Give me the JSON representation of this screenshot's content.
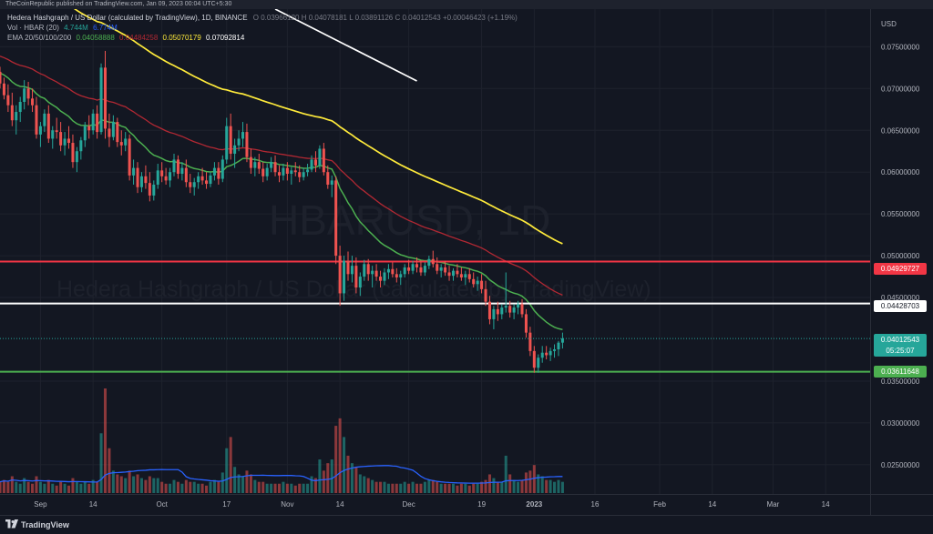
{
  "header": {
    "published_text": "TheCoinRepublic published on TradingView.com, Jan 09, 2023 00:04 UTC+5:30"
  },
  "legend": {
    "title": "Hedera Hashgraph / US Dollar (calculated by TradingView), 1D, BINANCE",
    "ohlc": "O 0.03966120 H 0.04078181 L 0.03891126 C 0.04012543 +0.00046423 (+1.19%)",
    "vol_label": "Vol · HBAR (20)",
    "vol_value": "4.744M",
    "vol_ma": "6.774M",
    "ema_label": "EMA 20/50/100/200",
    "ema20": "0.04058888",
    "ema50": "0.04484258",
    "ema100": "0.05070179",
    "ema200": "0.07092814"
  },
  "watermark": {
    "symbol": "HBARUSD, 1D",
    "description": "Hedera Hashgraph / US Dollar (calculated by TradingView)"
  },
  "price_labels": {
    "resistance_red": "0.04929727",
    "resistance_white": "0.04428703",
    "current_price": "0.04012543",
    "countdown": "05:25:07",
    "support_green": "0.03611648"
  },
  "footer": {
    "brand": "TradingView"
  },
  "colors": {
    "background": "#131722",
    "up_candle": "#26a69a",
    "down_candle": "#ef5350",
    "ema20": "#4caf50",
    "ema50": "#b22833",
    "ema100": "#ffeb3b",
    "ema200": "#ffffff",
    "volume_ma": "#2962ff",
    "red_level": "#f23645",
    "white_level": "#ffffff",
    "green_level": "#4caf50"
  },
  "chart_data": {
    "type": "candlestick",
    "title": "Hedera Hashgraph / US Dollar",
    "currency": "USD",
    "y_ticks": [
      "0.07500000",
      "0.07000000",
      "0.06500000",
      "0.06000000",
      "0.05500000",
      "0.05000000",
      "0.04500000",
      "0.03500000",
      "0.03000000",
      "0.02500000"
    ],
    "y_tick_values": [
      0.075,
      0.07,
      0.065,
      0.06,
      0.055,
      0.05,
      0.045,
      0.035,
      0.03,
      0.025
    ],
    "x_ticks": [
      "Sep",
      "14",
      "Oct",
      "17",
      "Nov",
      "14",
      "Dec",
      "19",
      "2023",
      "16",
      "Feb",
      "14",
      "Mar",
      "14"
    ],
    "x_tick_dates": [
      "2022-09-01",
      "2022-09-14",
      "2022-10-01",
      "2022-10-17",
      "2022-11-01",
      "2022-11-14",
      "2022-12-01",
      "2022-12-19",
      "2023-01-01",
      "2023-01-16",
      "2023-02-01",
      "2023-02-14",
      "2023-03-01",
      "2023-03-14"
    ],
    "date_range": [
      "2022-08-22",
      "2023-03-25"
    ],
    "price_range": [
      0.0215,
      0.0795
    ],
    "horizontal_levels": [
      {
        "price": 0.04929727,
        "color": "red"
      },
      {
        "price": 0.04428703,
        "color": "white"
      },
      {
        "price": 0.03611648,
        "color": "green"
      }
    ],
    "candles": {
      "start_date": "2022-08-22",
      "interval": "1D",
      "fields": [
        "open",
        "high",
        "low",
        "close",
        "volume_relative"
      ],
      "values": [
        [
          0.072,
          0.0726,
          0.07,
          0.0706,
          0.3
        ],
        [
          0.0706,
          0.0713,
          0.0687,
          0.0692,
          0.35
        ],
        [
          0.0692,
          0.0705,
          0.0672,
          0.068,
          0.3
        ],
        [
          0.068,
          0.0695,
          0.0655,
          0.0662,
          0.45
        ],
        [
          0.0662,
          0.068,
          0.0645,
          0.0672,
          0.3
        ],
        [
          0.0672,
          0.069,
          0.066,
          0.0684,
          0.25
        ],
        [
          0.0684,
          0.071,
          0.0675,
          0.07,
          0.4
        ],
        [
          0.07,
          0.0708,
          0.068,
          0.0688,
          0.3
        ],
        [
          0.0688,
          0.07,
          0.0672,
          0.068,
          0.25
        ],
        [
          0.068,
          0.069,
          0.064,
          0.0645,
          0.45
        ],
        [
          0.0645,
          0.066,
          0.063,
          0.0655,
          0.3
        ],
        [
          0.0655,
          0.0675,
          0.0648,
          0.067,
          0.25
        ],
        [
          0.067,
          0.068,
          0.0635,
          0.064,
          0.35
        ],
        [
          0.064,
          0.0655,
          0.0628,
          0.065,
          0.25
        ],
        [
          0.065,
          0.0665,
          0.064,
          0.0648,
          0.2
        ],
        [
          0.0648,
          0.066,
          0.0625,
          0.0632,
          0.3
        ],
        [
          0.0632,
          0.0648,
          0.062,
          0.064,
          0.25
        ],
        [
          0.064,
          0.0655,
          0.0628,
          0.0635,
          0.2
        ],
        [
          0.0635,
          0.0645,
          0.0605,
          0.0612,
          0.4
        ],
        [
          0.0612,
          0.063,
          0.06,
          0.0625,
          0.3
        ],
        [
          0.0625,
          0.0642,
          0.0615,
          0.0638,
          0.25
        ],
        [
          0.0638,
          0.066,
          0.063,
          0.0655,
          0.3
        ],
        [
          0.0655,
          0.0668,
          0.064,
          0.065,
          0.25
        ],
        [
          0.065,
          0.0675,
          0.0645,
          0.067,
          0.35
        ],
        [
          0.067,
          0.068,
          0.064,
          0.0648,
          0.3
        ],
        [
          0.0648,
          0.073,
          0.0645,
          0.0725,
          1.6
        ],
        [
          0.0725,
          0.0745,
          0.064,
          0.0652,
          2.8
        ],
        [
          0.0652,
          0.067,
          0.063,
          0.0642,
          1.2
        ],
        [
          0.0642,
          0.0668,
          0.0638,
          0.066,
          0.6
        ],
        [
          0.066,
          0.0665,
          0.063,
          0.0636,
          0.5
        ],
        [
          0.0636,
          0.065,
          0.062,
          0.0632,
          0.45
        ],
        [
          0.0632,
          0.0648,
          0.0625,
          0.064,
          0.4
        ],
        [
          0.064,
          0.0645,
          0.059,
          0.0596,
          0.6
        ],
        [
          0.0596,
          0.0615,
          0.0585,
          0.0605,
          0.45
        ],
        [
          0.0605,
          0.0612,
          0.0575,
          0.0582,
          0.5
        ],
        [
          0.0582,
          0.06,
          0.0576,
          0.0595,
          0.4
        ],
        [
          0.0595,
          0.0608,
          0.058,
          0.0587,
          0.35
        ],
        [
          0.0587,
          0.06,
          0.0565,
          0.0572,
          0.45
        ],
        [
          0.0572,
          0.059,
          0.0566,
          0.0585,
          0.4
        ],
        [
          0.0585,
          0.061,
          0.058,
          0.0602,
          0.4
        ],
        [
          0.0602,
          0.0612,
          0.0588,
          0.0595,
          0.3
        ],
        [
          0.0595,
          0.0605,
          0.0585,
          0.059,
          0.25
        ],
        [
          0.059,
          0.0605,
          0.0582,
          0.06,
          0.25
        ],
        [
          0.06,
          0.0622,
          0.0595,
          0.0615,
          0.35
        ],
        [
          0.0615,
          0.062,
          0.0592,
          0.0598,
          0.3
        ],
        [
          0.0598,
          0.0612,
          0.059,
          0.0605,
          0.25
        ],
        [
          0.0605,
          0.0615,
          0.0582,
          0.0588,
          0.35
        ],
        [
          0.0588,
          0.0598,
          0.0575,
          0.0582,
          0.3
        ],
        [
          0.0582,
          0.0593,
          0.0572,
          0.0588,
          0.3
        ],
        [
          0.0588,
          0.06,
          0.058,
          0.0595,
          0.25
        ],
        [
          0.0595,
          0.0605,
          0.0585,
          0.059,
          0.25
        ],
        [
          0.059,
          0.06,
          0.058,
          0.0586,
          0.2
        ],
        [
          0.0586,
          0.06,
          0.0582,
          0.0596,
          0.3
        ],
        [
          0.0596,
          0.0612,
          0.059,
          0.0605,
          0.35
        ],
        [
          0.0605,
          0.0612,
          0.0585,
          0.0592,
          0.3
        ],
        [
          0.0592,
          0.062,
          0.0588,
          0.0615,
          0.55
        ],
        [
          0.0615,
          0.0665,
          0.061,
          0.0655,
          1.2
        ],
        [
          0.0655,
          0.067,
          0.0615,
          0.0622,
          1.5
        ],
        [
          0.0622,
          0.064,
          0.0605,
          0.0632,
          0.7
        ],
        [
          0.0632,
          0.065,
          0.0625,
          0.064,
          0.5
        ],
        [
          0.064,
          0.066,
          0.063,
          0.0648,
          0.45
        ],
        [
          0.0648,
          0.0658,
          0.0612,
          0.0618,
          0.6
        ],
        [
          0.0618,
          0.0628,
          0.0598,
          0.0605,
          0.5
        ],
        [
          0.0605,
          0.0618,
          0.0595,
          0.0612,
          0.35
        ],
        [
          0.0612,
          0.0622,
          0.0598,
          0.0604,
          0.3
        ],
        [
          0.0604,
          0.0612,
          0.0588,
          0.0595,
          0.3
        ],
        [
          0.0595,
          0.061,
          0.059,
          0.0605,
          0.25
        ],
        [
          0.0605,
          0.0618,
          0.06,
          0.0612,
          0.25
        ],
        [
          0.0612,
          0.062,
          0.0595,
          0.06,
          0.25
        ],
        [
          0.06,
          0.0608,
          0.0588,
          0.0596,
          0.25
        ],
        [
          0.0596,
          0.061,
          0.059,
          0.0605,
          0.3
        ],
        [
          0.0605,
          0.0612,
          0.059,
          0.0598,
          0.25
        ],
        [
          0.0598,
          0.0606,
          0.0585,
          0.0602,
          0.25
        ],
        [
          0.0602,
          0.0612,
          0.0595,
          0.06,
          0.2
        ],
        [
          0.06,
          0.0608,
          0.0588,
          0.0594,
          0.25
        ],
        [
          0.0594,
          0.0605,
          0.059,
          0.06,
          0.25
        ],
        [
          0.06,
          0.061,
          0.0595,
          0.0603,
          0.25
        ],
        [
          0.0603,
          0.062,
          0.06,
          0.0615,
          0.45
        ],
        [
          0.0615,
          0.0625,
          0.06,
          0.0608,
          0.4
        ],
        [
          0.0608,
          0.0632,
          0.0604,
          0.0628,
          0.9
        ],
        [
          0.0628,
          0.0635,
          0.0596,
          0.06,
          0.6
        ],
        [
          0.06,
          0.0608,
          0.058,
          0.0585,
          0.8
        ],
        [
          0.0585,
          0.0596,
          0.057,
          0.059,
          0.9
        ],
        [
          0.059,
          0.0595,
          0.049,
          0.05,
          1.8
        ],
        [
          0.05,
          0.0512,
          0.044,
          0.0455,
          2.0
        ],
        [
          0.0455,
          0.05,
          0.0446,
          0.0494,
          1.5
        ],
        [
          0.0494,
          0.0505,
          0.047,
          0.0478,
          1.0
        ],
        [
          0.0478,
          0.05,
          0.0468,
          0.0488,
          0.8
        ],
        [
          0.0488,
          0.0498,
          0.0455,
          0.0462,
          0.7
        ],
        [
          0.0462,
          0.048,
          0.0452,
          0.0475,
          0.5
        ],
        [
          0.0475,
          0.0495,
          0.047,
          0.049,
          0.45
        ],
        [
          0.049,
          0.0496,
          0.047,
          0.0478,
          0.4
        ],
        [
          0.0478,
          0.0488,
          0.0462,
          0.0482,
          0.35
        ],
        [
          0.0482,
          0.049,
          0.047,
          0.0475,
          0.3
        ],
        [
          0.0475,
          0.0482,
          0.0462,
          0.047,
          0.3
        ],
        [
          0.047,
          0.0485,
          0.0465,
          0.048,
          0.3
        ],
        [
          0.048,
          0.049,
          0.0472,
          0.0484,
          0.25
        ],
        [
          0.0484,
          0.0492,
          0.0474,
          0.0478,
          0.25
        ],
        [
          0.0478,
          0.0485,
          0.0468,
          0.0474,
          0.25
        ],
        [
          0.0474,
          0.0482,
          0.0465,
          0.0478,
          0.25
        ],
        [
          0.0478,
          0.049,
          0.0474,
          0.0486,
          0.3
        ],
        [
          0.0486,
          0.0495,
          0.0478,
          0.0482,
          0.25
        ],
        [
          0.0482,
          0.0494,
          0.0478,
          0.049,
          0.3
        ],
        [
          0.049,
          0.0498,
          0.048,
          0.0486,
          0.25
        ],
        [
          0.0486,
          0.0494,
          0.0476,
          0.048,
          0.25
        ],
        [
          0.048,
          0.0492,
          0.0476,
          0.0488,
          0.3
        ],
        [
          0.0488,
          0.05,
          0.0484,
          0.0496,
          0.35
        ],
        [
          0.0496,
          0.0506,
          0.0486,
          0.049,
          0.35
        ],
        [
          0.049,
          0.0498,
          0.0478,
          0.0482,
          0.3
        ],
        [
          0.0482,
          0.049,
          0.0474,
          0.0486,
          0.25
        ],
        [
          0.0486,
          0.0494,
          0.0476,
          0.048,
          0.25
        ],
        [
          0.048,
          0.0488,
          0.047,
          0.0476,
          0.25
        ],
        [
          0.0476,
          0.0485,
          0.047,
          0.0482,
          0.25
        ],
        [
          0.0482,
          0.049,
          0.0474,
          0.0478,
          0.2
        ],
        [
          0.0478,
          0.0486,
          0.047,
          0.0474,
          0.25
        ],
        [
          0.0474,
          0.0482,
          0.0465,
          0.0478,
          0.25
        ],
        [
          0.0478,
          0.0485,
          0.0468,
          0.0472,
          0.2
        ],
        [
          0.0472,
          0.048,
          0.0462,
          0.0466,
          0.25
        ],
        [
          0.0466,
          0.0475,
          0.0458,
          0.047,
          0.25
        ],
        [
          0.047,
          0.0478,
          0.0455,
          0.046,
          0.3
        ],
        [
          0.046,
          0.047,
          0.044,
          0.0445,
          0.35
        ],
        [
          0.0445,
          0.0452,
          0.0418,
          0.0424,
          0.5
        ],
        [
          0.0424,
          0.044,
          0.0412,
          0.0436,
          0.4
        ],
        [
          0.0436,
          0.0445,
          0.0422,
          0.043,
          0.3
        ],
        [
          0.043,
          0.0442,
          0.0424,
          0.0438,
          0.3
        ],
        [
          0.0438,
          0.048,
          0.0432,
          0.044,
          1.0
        ],
        [
          0.044,
          0.0446,
          0.0426,
          0.0432,
          0.5
        ],
        [
          0.0432,
          0.0442,
          0.0424,
          0.0438,
          0.35
        ],
        [
          0.0438,
          0.0446,
          0.043,
          0.0442,
          0.3
        ],
        [
          0.0442,
          0.0448,
          0.0426,
          0.043,
          0.35
        ],
        [
          0.043,
          0.0436,
          0.0402,
          0.0408,
          0.55
        ],
        [
          0.0408,
          0.0415,
          0.038,
          0.0386,
          0.6
        ],
        [
          0.0386,
          0.0392,
          0.036,
          0.0366,
          0.75
        ],
        [
          0.0366,
          0.0382,
          0.036,
          0.0378,
          0.5
        ],
        [
          0.0378,
          0.0392,
          0.0372,
          0.0384,
          0.45
        ],
        [
          0.0384,
          0.0392,
          0.0376,
          0.0381,
          0.35
        ],
        [
          0.0381,
          0.039,
          0.0374,
          0.0386,
          0.35
        ],
        [
          0.0386,
          0.0394,
          0.0378,
          0.0388,
          0.3
        ],
        [
          0.0388,
          0.0398,
          0.038,
          0.0396,
          0.35
        ],
        [
          0.0396,
          0.0408,
          0.0389,
          0.0401,
          0.3
        ]
      ]
    },
    "series": [
      {
        "name": "EMA 20",
        "color": "#4caf50"
      },
      {
        "name": "EMA 50",
        "color": "#b22833"
      },
      {
        "name": "EMA 100",
        "color": "#ffeb3b"
      },
      {
        "name": "EMA 200",
        "color": "#ffffff",
        "visible_points": [
          [
            "2022-10-29",
            0.0795
          ],
          [
            "2022-12-03",
            0.0709
          ]
        ]
      }
    ],
    "volume_ma_color": "#2962ff"
  }
}
